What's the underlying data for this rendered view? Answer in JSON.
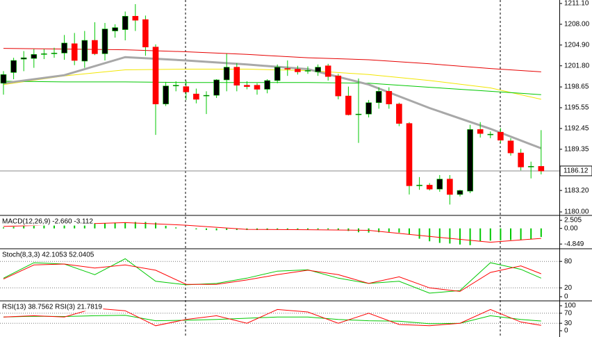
{
  "chart_data": [
    {
      "type": "candlestick",
      "open": [
        1199.2,
        1200.8,
        1202.8,
        1202.9,
        1203.5,
        1203.6,
        1203.7,
        1205.1,
        1202.5,
        1205.6,
        1203.6,
        1207,
        1207.2,
        1209.2,
        1208.7,
        1204.6,
        1196.1,
        1198.8,
        1198.7,
        1197.6,
        1197.3,
        1197.4,
        1199.7,
        1201.6,
        1198.9,
        1198.9,
        1198.3,
        1199.6,
        1201.4,
        1201.3,
        1201,
        1200.9,
        1201.8,
        1200.3,
        1197.3,
        1194.5,
        1194.6,
        1196.3,
        1198,
        1196.1,
        1193.2,
        1183.9,
        1184,
        1183.4,
        1184.9,
        1182.6,
        1183.1,
        1192.3,
        1191.5,
        1191.9,
        1190.6,
        1188.8,
        1186.7,
        1186.8
      ],
      "high": [
        1201,
        1203,
        1204,
        1204.3,
        1204.3,
        1204.5,
        1206.4,
        1206.7,
        1207,
        1208.3,
        1208.2,
        1208,
        1209.9,
        1211,
        1209.3,
        1205,
        1199.4,
        1199.5,
        1199.6,
        1198.4,
        1198,
        1199.8,
        1203.6,
        1202.2,
        1199.5,
        1199.2,
        1199.8,
        1202,
        1202.6,
        1201.8,
        1201.7,
        1202,
        1202.1,
        1200.6,
        1198.7,
        1199.9,
        1196.7,
        1198.6,
        1198.6,
        1196.3,
        1193.4,
        1185.2,
        1184.3,
        1185.5,
        1185.5,
        1183.3,
        1193,
        1193.4,
        1192,
        1192.5,
        1191,
        1189.4,
        1187.5,
        1192.2
      ],
      "low": [
        1197.5,
        1199.8,
        1201,
        1201.5,
        1202.8,
        1203,
        1202.7,
        1201.9,
        1201.5,
        1203.4,
        1202.6,
        1206,
        1205.6,
        1207,
        1203.3,
        1191.5,
        1195.8,
        1198,
        1196.7,
        1196.2,
        1194.6,
        1197,
        1198,
        1198,
        1198.3,
        1197.5,
        1197.7,
        1199.2,
        1200.3,
        1200.5,
        1200.6,
        1200.3,
        1199.6,
        1196.8,
        1194.4,
        1190.3,
        1194.1,
        1195.4,
        1195.4,
        1192.8,
        1182.6,
        1183.3,
        1183.2,
        1183,
        1181.1,
        1182.3,
        1182.8,
        1191.1,
        1191,
        1190.3,
        1188.4,
        1186.2,
        1185,
        1185.6
      ],
      "close": [
        1200.5,
        1202.6,
        1203,
        1203.5,
        1203.6,
        1203.7,
        1205.2,
        1202.6,
        1205.6,
        1203.6,
        1207.3,
        1207.5,
        1209.2,
        1208.6,
        1204.6,
        1196.1,
        1198.8,
        1198.9,
        1197.9,
        1196.8,
        1197.4,
        1199.7,
        1201.6,
        1198.9,
        1198.7,
        1198.3,
        1199.6,
        1201.6,
        1201.3,
        1200.9,
        1201.1,
        1201.6,
        1200.2,
        1197.3,
        1194.5,
        1194.6,
        1196.3,
        1198,
        1196.1,
        1193.2,
        1183.9,
        1184,
        1183.4,
        1184.9,
        1182.6,
        1183.2,
        1192.3,
        1191.7,
        1191.6,
        1190.7,
        1188.8,
        1186.7,
        1186.8,
        1186.1
      ],
      "up_color": "#000000",
      "down_color": "#ff0000",
      "wick_color": "#00c800",
      "lines": [
        {
          "color": "#e60000",
          "width": 1,
          "x": [
            0,
            6,
            12,
            18,
            24,
            30,
            36,
            42,
            48,
            53
          ],
          "values": [
            1204.4,
            1204.3,
            1204.2,
            1203.9,
            1203.5,
            1203.0,
            1202.7,
            1202.1,
            1201.4,
            1200.9
          ]
        },
        {
          "color": "#f2e600",
          "width": 1,
          "x": [
            0,
            6,
            12,
            18,
            24,
            30,
            36,
            42,
            48,
            53
          ],
          "values": [
            1199.0,
            1200.3,
            1201.2,
            1201.3,
            1201.3,
            1201.1,
            1200.5,
            1199.6,
            1198.5,
            1196.8
          ]
        },
        {
          "color": "#00c800",
          "width": 1,
          "x": [
            0,
            6,
            12,
            18,
            24,
            30,
            36,
            42,
            48,
            53
          ],
          "values": [
            1199.5,
            1199.4,
            1199.4,
            1199.3,
            1199.3,
            1199.3,
            1199.2,
            1198.6,
            1198.0,
            1197.5
          ]
        },
        {
          "color": "#a8a8a8",
          "width": 3,
          "x": [
            0,
            6,
            12,
            18,
            24,
            30,
            36,
            42,
            48,
            53
          ],
          "values": [
            1199.2,
            1200.4,
            1203.1,
            1202.6,
            1202.0,
            1201.3,
            1199.0,
            1195.5,
            1192.4,
            1189.5
          ]
        }
      ],
      "last_price": 1186.12,
      "ylim": [
        1179.48,
        1211.62
      ],
      "yticks": [
        {
          "value": 1211.1,
          "label": "1211.10"
        },
        {
          "value": 1208,
          "label": "1208.00"
        },
        {
          "value": 1204.9,
          "label": "1204.90"
        },
        {
          "value": 1201.8,
          "label": "1201.80"
        },
        1198.65,
        1195.55,
        1192.45,
        1189.35,
        {
          "value": 1183.2,
          "label": "1183.20"
        },
        {
          "value": 1180,
          "label": "1180.00"
        }
      ],
      "grid": false
    },
    {
      "type": "macd",
      "title": "MACD(12,26,9) -2.660 -3.112",
      "histogram": {
        "color": "#00c800",
        "values": [
          0.3,
          0.5,
          0.7,
          0.8,
          0.9,
          1.0,
          1.1,
          1.2,
          1.3,
          1.5,
          1.6,
          1.8,
          1.9,
          2.0,
          2.0,
          1.8,
          0.8,
          0.3,
          0.0,
          -0.3,
          -0.5,
          -0.6,
          -0.5,
          -0.5,
          -0.5,
          -0.5,
          -0.5,
          -0.4,
          -0.3,
          -0.3,
          -0.3,
          -0.3,
          -0.3,
          -0.5,
          -0.8,
          -1.2,
          -1.3,
          -1.2,
          -1.1,
          -1.3,
          -1.8,
          -3.2,
          -4.0,
          -4.5,
          -4.7,
          -5.0,
          -5.2,
          -4.0,
          -3.8,
          -3.7,
          -3.6,
          -3.6,
          -3.4,
          -2.66
        ]
      },
      "signal": {
        "color": "#ff0000",
        "x": [
          0,
          6,
          12,
          18,
          24,
          30,
          36,
          42,
          48,
          53
        ],
        "values": [
          0.6,
          1.2,
          1.8,
          1.0,
          -0.3,
          -0.4,
          -0.6,
          -2.5,
          -4.3,
          -3.112
        ]
      },
      "ylim": [
        -6.1,
        3.6
      ],
      "yticks": [
        2.505,
        {
          "value": 0,
          "label": "0.00"
        },
        -4.849
      ],
      "grid": false
    },
    {
      "type": "oscillator",
      "title": "Stoch(8,3,3) 42.1053 52.0405",
      "x": [
        0,
        3,
        6,
        9,
        12,
        15,
        18,
        21,
        24,
        27,
        30,
        33,
        36,
        39,
        42,
        45,
        48,
        51,
        53
      ],
      "series": [
        {
          "color": "#00c800",
          "values": [
            42,
            77,
            74,
            50,
            86,
            35,
            27,
            30,
            42,
            58,
            61,
            42,
            30,
            35,
            8,
            14,
            77,
            62,
            42.1053
          ]
        },
        {
          "color": "#ff0000",
          "values": [
            40,
            72,
            74,
            65,
            72,
            60,
            28,
            28,
            38,
            50,
            60,
            50,
            30,
            45,
            20,
            12,
            55,
            70,
            52.0405
          ]
        }
      ],
      "ylim": [
        0,
        100
      ],
      "yticks": [
        80,
        20,
        0
      ],
      "grid": true
    },
    {
      "type": "oscillator",
      "title": "RSI(13) 38.7562 RSI(3) 21.7819",
      "x": [
        0,
        3,
        6,
        9,
        12,
        15,
        18,
        21,
        24,
        27,
        30,
        33,
        36,
        39,
        42,
        45,
        48,
        51,
        53
      ],
      "series": [
        {
          "color": "#00c800",
          "values": [
            55,
            58,
            57,
            60,
            62,
            40,
            42,
            45,
            50,
            55,
            55,
            45,
            40,
            38,
            28,
            30,
            60,
            45,
            38.7562
          ]
        },
        {
          "color": "#ff0000",
          "values": [
            55,
            60,
            55,
            90,
            80,
            20,
            45,
            60,
            30,
            85,
            75,
            30,
            70,
            25,
            20,
            30,
            85,
            35,
            21.7819
          ]
        }
      ],
      "ylim": [
        0,
        100
      ],
      "yticks": [
        100,
        70,
        30,
        0
      ],
      "grid": true
    }
  ]
}
